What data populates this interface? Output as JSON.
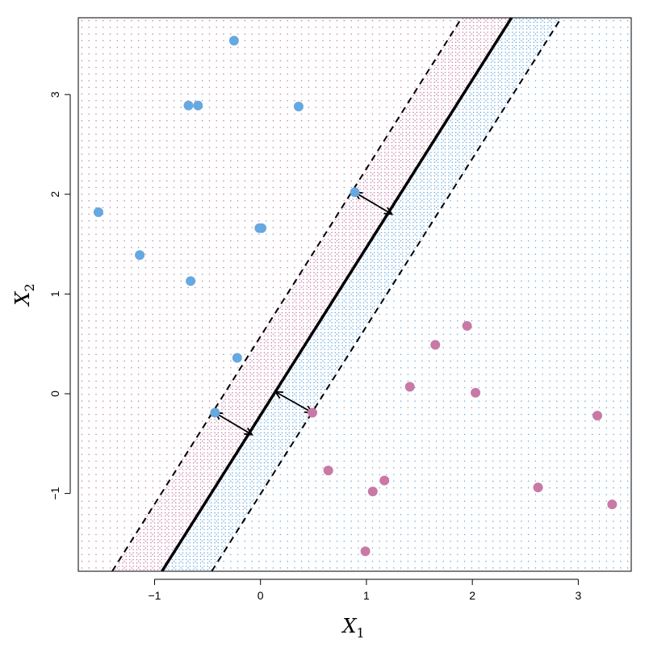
{
  "chart_data": {
    "type": "scatter",
    "xlabel": "X",
    "xlabel_sub": "1",
    "ylabel": "X",
    "ylabel_sub": "2",
    "xlim": [
      -1.72,
      3.5
    ],
    "ylim": [
      -1.78,
      3.77
    ],
    "xticks": [
      -1,
      0,
      1,
      2,
      3
    ],
    "yticks": [
      -1,
      0,
      1,
      2,
      3
    ],
    "tick_labels_x": [
      "−1",
      "0",
      "1",
      "2",
      "3"
    ],
    "tick_labels_y": [
      "−1",
      "0",
      "1",
      "2",
      "3"
    ],
    "grid": false,
    "colors": {
      "class_blue": "#66a8e0",
      "class_pink": "#c979a6",
      "line": "#000000"
    },
    "series": [
      {
        "points": [
          [
            -0.25,
            3.54
          ],
          [
            -0.68,
            2.89
          ],
          [
            -0.59,
            2.89
          ],
          [
            0.36,
            2.88
          ],
          [
            0.89,
            2.02
          ],
          [
            -1.53,
            1.82
          ],
          [
            -1.14,
            1.39
          ],
          [
            -0.66,
            1.13
          ],
          [
            -0.01,
            1.66
          ],
          [
            0.01,
            1.66
          ],
          [
            -0.22,
            0.36
          ],
          [
            -0.43,
            -0.19
          ]
        ]
      },
      {
        "points": [
          [
            1.95,
            0.68
          ],
          [
            1.65,
            0.49
          ],
          [
            1.41,
            0.07
          ],
          [
            2.03,
            0.01
          ],
          [
            0.49,
            -0.19
          ],
          [
            3.18,
            -0.22
          ],
          [
            0.64,
            -0.77
          ],
          [
            1.17,
            -0.87
          ],
          [
            1.06,
            -0.98
          ],
          [
            2.62,
            -0.94
          ],
          [
            3.32,
            -1.11
          ],
          [
            0.99,
            -1.58
          ]
        ]
      }
    ],
    "hyperplane": {
      "points": [
        [
          -0.93,
          -1.78
        ],
        [
          2.37,
          3.77
        ]
      ],
      "style": "solid"
    },
    "margins": [
      {
        "points": [
          [
            -1.4,
            -1.78
          ],
          [
            1.9,
            3.77
          ]
        ],
        "style": "dashed"
      },
      {
        "points": [
          [
            -0.46,
            -1.78
          ],
          [
            2.84,
            3.77
          ]
        ],
        "style": "dashed"
      }
    ],
    "margin_arrows": [
      {
        "from": [
          0.89,
          2.02
        ],
        "to": [
          1.24,
          1.8
        ]
      },
      {
        "from": [
          -0.43,
          -0.19
        ],
        "to": [
          -0.08,
          -0.41
        ]
      },
      {
        "from": [
          0.49,
          -0.19
        ],
        "to": [
          0.14,
          0.02
        ]
      }
    ]
  }
}
